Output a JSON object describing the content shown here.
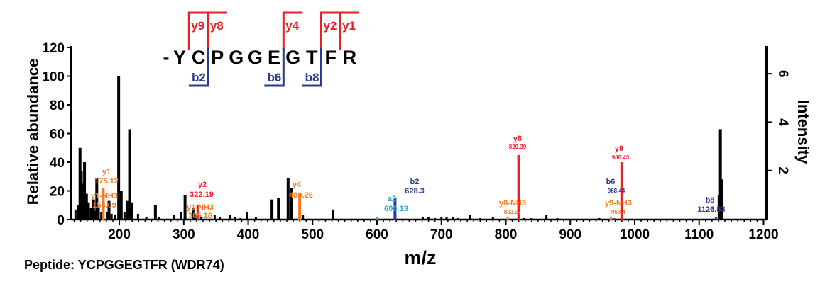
{
  "chart_data": {
    "type": "bar",
    "xlabel": "m/z",
    "ylabel_left": "Relative abundance",
    "ylabel_right": "Intensity",
    "x_ticks": [
      "200",
      "300",
      "400",
      "500",
      "600",
      "700",
      "800",
      "900",
      "1000",
      "1100",
      "1200"
    ],
    "x_tick_values": [
      200,
      300,
      400,
      500,
      600,
      700,
      800,
      900,
      1000,
      1100,
      1200
    ],
    "y_ticks_left": [
      "0",
      "20",
      "40",
      "60",
      "80",
      "100",
      "120"
    ],
    "y_tick_values_left": [
      0,
      20,
      40,
      60,
      80,
      100,
      120
    ],
    "y_ticks_right": [
      "2",
      "4",
      "6"
    ],
    "y_tick_values_right": [
      2,
      4,
      6
    ],
    "xlim": [
      125,
      1205
    ],
    "ylim": [
      0,
      120
    ],
    "peaks": [
      {
        "mz": 132,
        "y": 7
      },
      {
        "mz": 136,
        "y": 10
      },
      {
        "mz": 139,
        "y": 50
      },
      {
        "mz": 141,
        "y": 34
      },
      {
        "mz": 143,
        "y": 25
      },
      {
        "mz": 146,
        "y": 40
      },
      {
        "mz": 149,
        "y": 18
      },
      {
        "mz": 152,
        "y": 12
      },
      {
        "mz": 156,
        "y": 8
      },
      {
        "mz": 160,
        "y": 14
      },
      {
        "mz": 162,
        "y": 6
      },
      {
        "mz": 165,
        "y": 29
      },
      {
        "mz": 168,
        "y": 9
      },
      {
        "mz": 172,
        "y": 5
      },
      {
        "mz": 175,
        "y": 22
      },
      {
        "mz": 181,
        "y": 5
      },
      {
        "mz": 184,
        "y": 13
      },
      {
        "mz": 188,
        "y": 4
      },
      {
        "mz": 193,
        "y": 3
      },
      {
        "mz": 199,
        "y": 100
      },
      {
        "mz": 203,
        "y": 20
      },
      {
        "mz": 208,
        "y": 5
      },
      {
        "mz": 212,
        "y": 13
      },
      {
        "mz": 216,
        "y": 63
      },
      {
        "mz": 219,
        "y": 12
      },
      {
        "mz": 229,
        "y": 4
      },
      {
        "mz": 242,
        "y": 2
      },
      {
        "mz": 256,
        "y": 10
      },
      {
        "mz": 262,
        "y": 2
      },
      {
        "mz": 285,
        "y": 3
      },
      {
        "mz": 296,
        "y": 5
      },
      {
        "mz": 302,
        "y": 17
      },
      {
        "mz": 315,
        "y": 8
      },
      {
        "mz": 318,
        "y": 3
      },
      {
        "mz": 322,
        "y": 10
      },
      {
        "mz": 327,
        "y": 2
      },
      {
        "mz": 348,
        "y": 3
      },
      {
        "mz": 356,
        "y": 2
      },
      {
        "mz": 372,
        "y": 3
      },
      {
        "mz": 380,
        "y": 2
      },
      {
        "mz": 388,
        "y": 1
      },
      {
        "mz": 398,
        "y": 5
      },
      {
        "mz": 412,
        "y": 2
      },
      {
        "mz": 437,
        "y": 14
      },
      {
        "mz": 447,
        "y": 15
      },
      {
        "mz": 462,
        "y": 29
      },
      {
        "mz": 467,
        "y": 22
      },
      {
        "mz": 480,
        "y": 18
      },
      {
        "mz": 485,
        "y": 3
      },
      {
        "mz": 532,
        "y": 7
      },
      {
        "mz": 600,
        "y": 2
      },
      {
        "mz": 628,
        "y": 15
      },
      {
        "mz": 671,
        "y": 2
      },
      {
        "mz": 680,
        "y": 2
      },
      {
        "mz": 690,
        "y": 1
      },
      {
        "mz": 700,
        "y": 2
      },
      {
        "mz": 708,
        "y": 2
      },
      {
        "mz": 718,
        "y": 2
      },
      {
        "mz": 726,
        "y": 1
      },
      {
        "mz": 744,
        "y": 3
      },
      {
        "mz": 760,
        "y": 1
      },
      {
        "mz": 780,
        "y": 2
      },
      {
        "mz": 803,
        "y": 2
      },
      {
        "mz": 820,
        "y": 45
      },
      {
        "mz": 828,
        "y": 1
      },
      {
        "mz": 840,
        "y": 1
      },
      {
        "mz": 863,
        "y": 3
      },
      {
        "mz": 880,
        "y": 1
      },
      {
        "mz": 945,
        "y": 1
      },
      {
        "mz": 963,
        "y": 2
      },
      {
        "mz": 968,
        "y": 1
      },
      {
        "mz": 980,
        "y": 40
      },
      {
        "mz": 1126,
        "y": 2
      },
      {
        "mz": 1131,
        "y": 17
      },
      {
        "mz": 1133,
        "y": 63
      },
      {
        "mz": 1135,
        "y": 28
      }
    ],
    "annotations": [
      {
        "label": "y1",
        "mz_label": "175.12",
        "mz": 175,
        "color": "#f47920"
      },
      {
        "label": "y1-NH3",
        "mz_label": "158.09",
        "mz": 158,
        "color": "#f47920"
      },
      {
        "label": "y2",
        "mz_label": "322.19",
        "mz": 322,
        "color": "#e8202a"
      },
      {
        "label": "y1-NH3",
        "mz_label": "305.16",
        "mz": 305,
        "color": "#f47920"
      },
      {
        "label": "y4",
        "mz_label": "480.26",
        "mz": 480,
        "color": "#f47920"
      },
      {
        "label": "a2",
        "mz_label": "600.13",
        "mz": 600,
        "color": "#2e9fd8"
      },
      {
        "label": "b2",
        "mz_label": "628.3",
        "mz": 628,
        "color": "#2b3990"
      },
      {
        "label": "y8-NH3",
        "mz_label": "803.37",
        "mz": 803,
        "color": "#f47920"
      },
      {
        "label": "y8",
        "mz_label": "820.39",
        "mz": 820,
        "color": "#e8202a"
      },
      {
        "label": "y9-NH3",
        "mz_label": "963.4",
        "mz": 963,
        "color": "#f47920"
      },
      {
        "label": "b6",
        "mz_label": "968.44",
        "mz": 968,
        "color": "#2b3990"
      },
      {
        "label": "y9",
        "mz_label": "980.43",
        "mz": 980,
        "color": "#e8202a"
      },
      {
        "label": "b8",
        "mz_label": "1126.53",
        "mz": 1126,
        "color": "#2b3990"
      }
    ],
    "peptide_label": "Peptide: YCPGGEGTFR (WDR74)",
    "sequence": {
      "prefix": "-",
      "residues": [
        "Y",
        "C",
        "P",
        "G",
        "G",
        "E",
        "G",
        "T",
        "F",
        "R"
      ],
      "y_ions": [
        {
          "label": "y9",
          "cut_after": 0
        },
        {
          "label": "y8",
          "cut_after": 1
        },
        {
          "label": "y4",
          "cut_after": 5
        },
        {
          "label": "y2",
          "cut_after": 7
        },
        {
          "label": "y1",
          "cut_after": 8
        }
      ],
      "b_ions": [
        {
          "label": "b2",
          "cut_after": 1
        },
        {
          "label": "b6",
          "cut_after": 5
        },
        {
          "label": "b8",
          "cut_after": 7
        }
      ]
    },
    "colors": {
      "bar": "#000000",
      "y_ion": "#e8202a",
      "y_ion_nh3": "#f47920",
      "b_ion": "#2b3990",
      "a_ion": "#2e9fd8"
    }
  }
}
